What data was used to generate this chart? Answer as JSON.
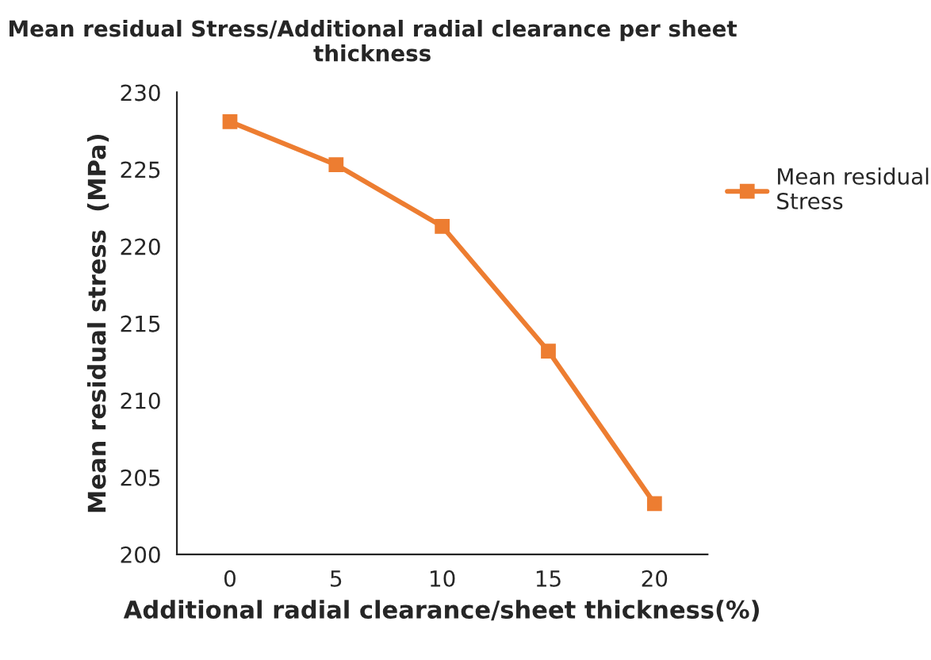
{
  "chart_data": {
    "type": "line",
    "title": "Mean residual Stress/Additional radial clearance per sheet thickness",
    "xlabel": "Additional radial clearance/sheet thickness(%)",
    "ylabel": "Mean residual stress  (MPa)",
    "x": [
      0,
      5,
      10,
      15,
      20
    ],
    "series": [
      {
        "name": "Mean residual Stress",
        "color": "#ed7d31",
        "values": [
          228.1,
          225.3,
          221.3,
          213.2,
          203.3
        ]
      }
    ],
    "xlim": [
      -2.5,
      22.5
    ],
    "xticks": [
      0,
      5,
      10,
      15,
      20
    ],
    "ylim": [
      200,
      230
    ],
    "yticks": [
      200,
      205,
      210,
      215,
      220,
      225,
      230
    ],
    "grid": false,
    "legend": "right",
    "marker": "square",
    "line_style": "solid"
  }
}
